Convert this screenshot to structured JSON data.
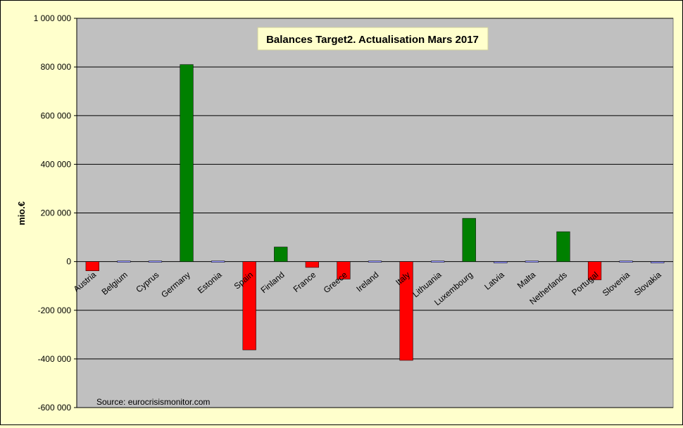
{
  "chart_data": {
    "type": "bar",
    "title": "Balances Target2. Actualisation Mars 2017",
    "ylabel": "mio.€",
    "source": "Source: eurocrisismonitor.com",
    "ylim": [
      -600000,
      1000000
    ],
    "yticks": [
      -600000,
      -400000,
      -200000,
      0,
      200000,
      400000,
      600000,
      800000,
      1000000
    ],
    "ytick_labels": [
      "-600 000",
      "-400 000",
      "-200 000",
      "0",
      "200 000",
      "400 000",
      "600 000",
      "800 000",
      "1 000 000"
    ],
    "grid": true,
    "categories": [
      "Austria",
      "Belgium",
      "Cyprus",
      "Germany",
      "Estonia",
      "Spain",
      "Finland",
      "France",
      "Greece",
      "Ireland",
      "Italy",
      "Lithuania",
      "Luxembourg",
      "Latvia",
      "Malta",
      "Netherlands",
      "Portugal",
      "Slovenia",
      "Slovakia"
    ],
    "values": [
      -38000,
      0,
      5000,
      810000,
      3000,
      -363000,
      60000,
      -24000,
      -72000,
      3000,
      -406000,
      -4000,
      178000,
      -6000,
      3000,
      123000,
      -75000,
      0,
      -6000
    ],
    "colors": {
      "positive": "#008000",
      "negative": "#ff0000",
      "small": "#9999ff",
      "plot_bg": "#c0c0c0",
      "page_bg": "#ffffcc"
    }
  }
}
